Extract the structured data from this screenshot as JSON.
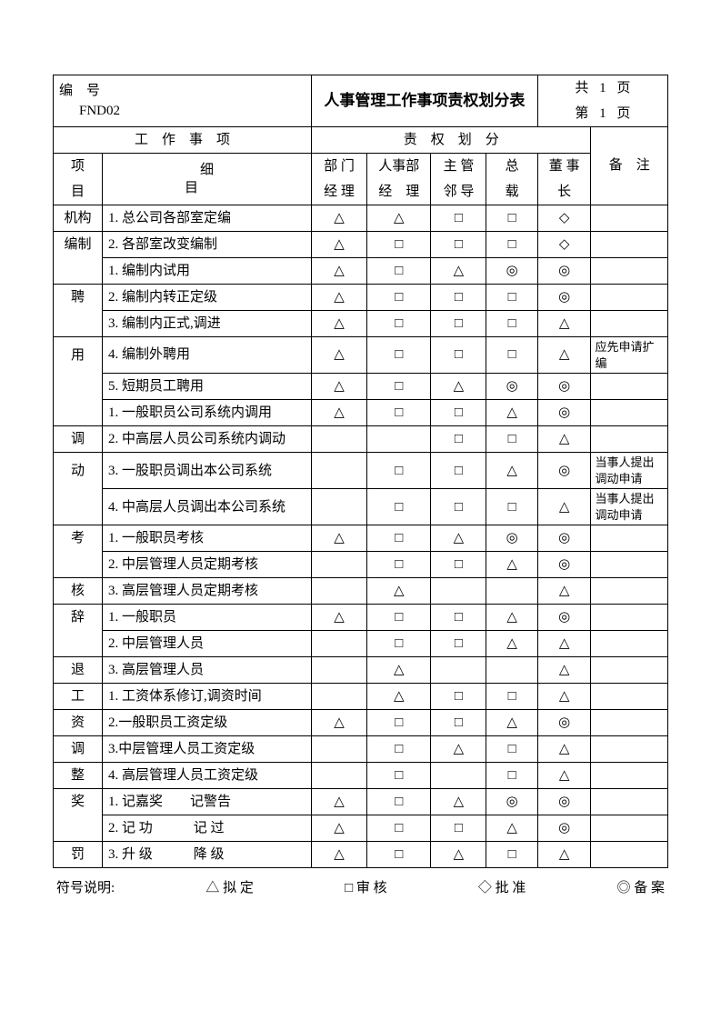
{
  "header": {
    "bianhao_label": "编　号",
    "code": "FND02",
    "title": "人事管理工作事项责权划分表",
    "page_total_prefix": "共",
    "page_total_num": "1",
    "page_total_suffix": "页",
    "page_cur_prefix": "第",
    "page_cur_num": "1",
    "page_cur_suffix": "页"
  },
  "section_headers": {
    "work_items": "工　作　事　项",
    "authority": "责　权　划　分",
    "item_top": "项",
    "item_bottom": "目",
    "detail_top": "细　　目",
    "col1_top": "部 门",
    "col1_bot": "经 理",
    "col2_top": "人事部",
    "col2_bot": "经　理",
    "col3_top": "主 管",
    "col3_bot": "邻 导",
    "col4_top": "总",
    "col4_bot": "载",
    "col5_top": "董 事",
    "col5_bot": "长",
    "note": "备　注"
  },
  "sym": {
    "tri": "△",
    "sq": "□",
    "dia": "◇",
    "dbl": "◎"
  },
  "rows": [
    {
      "cat": "机构",
      "cat_rows": 1,
      "detail": "1. 总公司各部室定编",
      "a": [
        "tri",
        "tri",
        "sq",
        "sq",
        "dia"
      ],
      "note": ""
    },
    {
      "cat": "编制",
      "cat_rows": 1,
      "detail": "2. 各部室改变编制",
      "a": [
        "tri",
        "sq",
        "sq",
        "sq",
        "dia"
      ],
      "note": ""
    },
    {
      "cat": "",
      "detail": "1. 编制内试用",
      "a": [
        "tri",
        "sq",
        "tri",
        "dbl",
        "dbl"
      ],
      "note": ""
    },
    {
      "cat": "聘",
      "cat_rows": 1,
      "detail": "2. 编制内转正定级",
      "a": [
        "tri",
        "sq",
        "sq",
        "sq",
        "dbl"
      ],
      "note": ""
    },
    {
      "cat": "",
      "detail": "3. 编制内正式,调进",
      "a": [
        "tri",
        "sq",
        "sq",
        "sq",
        "tri"
      ],
      "note": ""
    },
    {
      "cat": "用",
      "cat_rows": 1,
      "detail": "4. 编制外聘用",
      "a": [
        "tri",
        "sq",
        "sq",
        "sq",
        "tri"
      ],
      "note": "应先申请扩编"
    },
    {
      "cat": "",
      "detail": "5. 短期员工聘用",
      "a": [
        "tri",
        "sq",
        "tri",
        "dbl",
        "dbl"
      ],
      "note": ""
    },
    {
      "cat": "",
      "detail": "1. 一般职员公司系统内调用",
      "a": [
        "tri",
        "sq",
        "sq",
        "tri",
        "dbl"
      ],
      "note": ""
    },
    {
      "cat": "调",
      "cat_rows": 1,
      "detail": "2. 中高层人员公司系统内调动",
      "a": [
        "",
        "",
        "sq",
        "sq",
        "tri"
      ],
      "note": ""
    },
    {
      "cat": "动",
      "cat_rows": 1,
      "detail": "3. 一股职员调出本公司系统",
      "a": [
        "",
        "sq",
        "sq",
        "tri",
        "dbl"
      ],
      "note": "当事人提出调动申请"
    },
    {
      "cat": "",
      "detail": "4. 中高层人员调出本公司系统",
      "a": [
        "",
        "sq",
        "sq",
        "sq",
        "tri"
      ],
      "note": "当事人提出调动申请"
    },
    {
      "cat": "考",
      "cat_rows": 1,
      "detail": "1. 一般职员考核",
      "a": [
        "tri",
        "sq",
        "tri",
        "dbl",
        "dbl"
      ],
      "note": ""
    },
    {
      "cat": "",
      "detail": "2. 中层管理人员定期考核",
      "a": [
        "",
        "sq",
        "sq",
        "tri",
        "dbl"
      ],
      "note": ""
    },
    {
      "cat": "核",
      "cat_rows": 1,
      "detail": "3. 高层管理人员定期考核",
      "a": [
        "",
        "tri",
        "",
        "",
        "tri"
      ],
      "note": ""
    },
    {
      "cat": "辞",
      "cat_rows": 1,
      "detail": "1. 一般职员",
      "a": [
        "tri",
        "sq",
        "sq",
        "tri",
        "dbl"
      ],
      "note": ""
    },
    {
      "cat": "",
      "detail": "2. 中层管理人员",
      "a": [
        "",
        "sq",
        "sq",
        "tri",
        "tri"
      ],
      "note": ""
    },
    {
      "cat": "退",
      "cat_rows": 1,
      "detail": "3. 高层管理人员",
      "a": [
        "",
        "tri",
        "",
        "",
        "tri"
      ],
      "note": ""
    },
    {
      "cat": "工",
      "cat_rows": 1,
      "detail": "1. 工资体系修订,调资时间",
      "a": [
        "",
        "tri",
        "sq",
        "sq",
        "tri"
      ],
      "note": ""
    },
    {
      "cat": "资",
      "cat_rows": 1,
      "detail": "2.一般职员工资定级",
      "a": [
        "tri",
        "sq",
        "sq",
        "tri",
        "dbl"
      ],
      "note": ""
    },
    {
      "cat": "调",
      "cat_rows": 1,
      "detail": "3.中层管理人员工资定级",
      "a": [
        "",
        "sq",
        "tri",
        "sq",
        "tri"
      ],
      "note": ""
    },
    {
      "cat": "整",
      "cat_rows": 1,
      "detail": "4. 高层管理人员工资定级",
      "a": [
        "",
        "sq",
        "",
        "sq",
        "tri"
      ],
      "note": ""
    },
    {
      "cat": "奖",
      "cat_rows": 1,
      "detail": "1. 记嘉奖　　记警告",
      "a": [
        "tri",
        "sq",
        "tri",
        "dbl",
        "dbl"
      ],
      "note": ""
    },
    {
      "cat": "",
      "detail": "2. 记 功　　　记 过",
      "a": [
        "tri",
        "sq",
        "sq",
        "tri",
        "dbl"
      ],
      "note": ""
    },
    {
      "cat": "罚",
      "cat_rows": 1,
      "detail": "3. 升 级　　　降 级",
      "a": [
        "tri",
        "sq",
        "tri",
        "sq",
        "tri"
      ],
      "note": ""
    }
  ],
  "legend": {
    "label": "符号说明:",
    "p1": "△ 拟 定",
    "p2": "□ 审 核",
    "p3": "◇ 批 准",
    "p4": "◎ 备 案"
  }
}
